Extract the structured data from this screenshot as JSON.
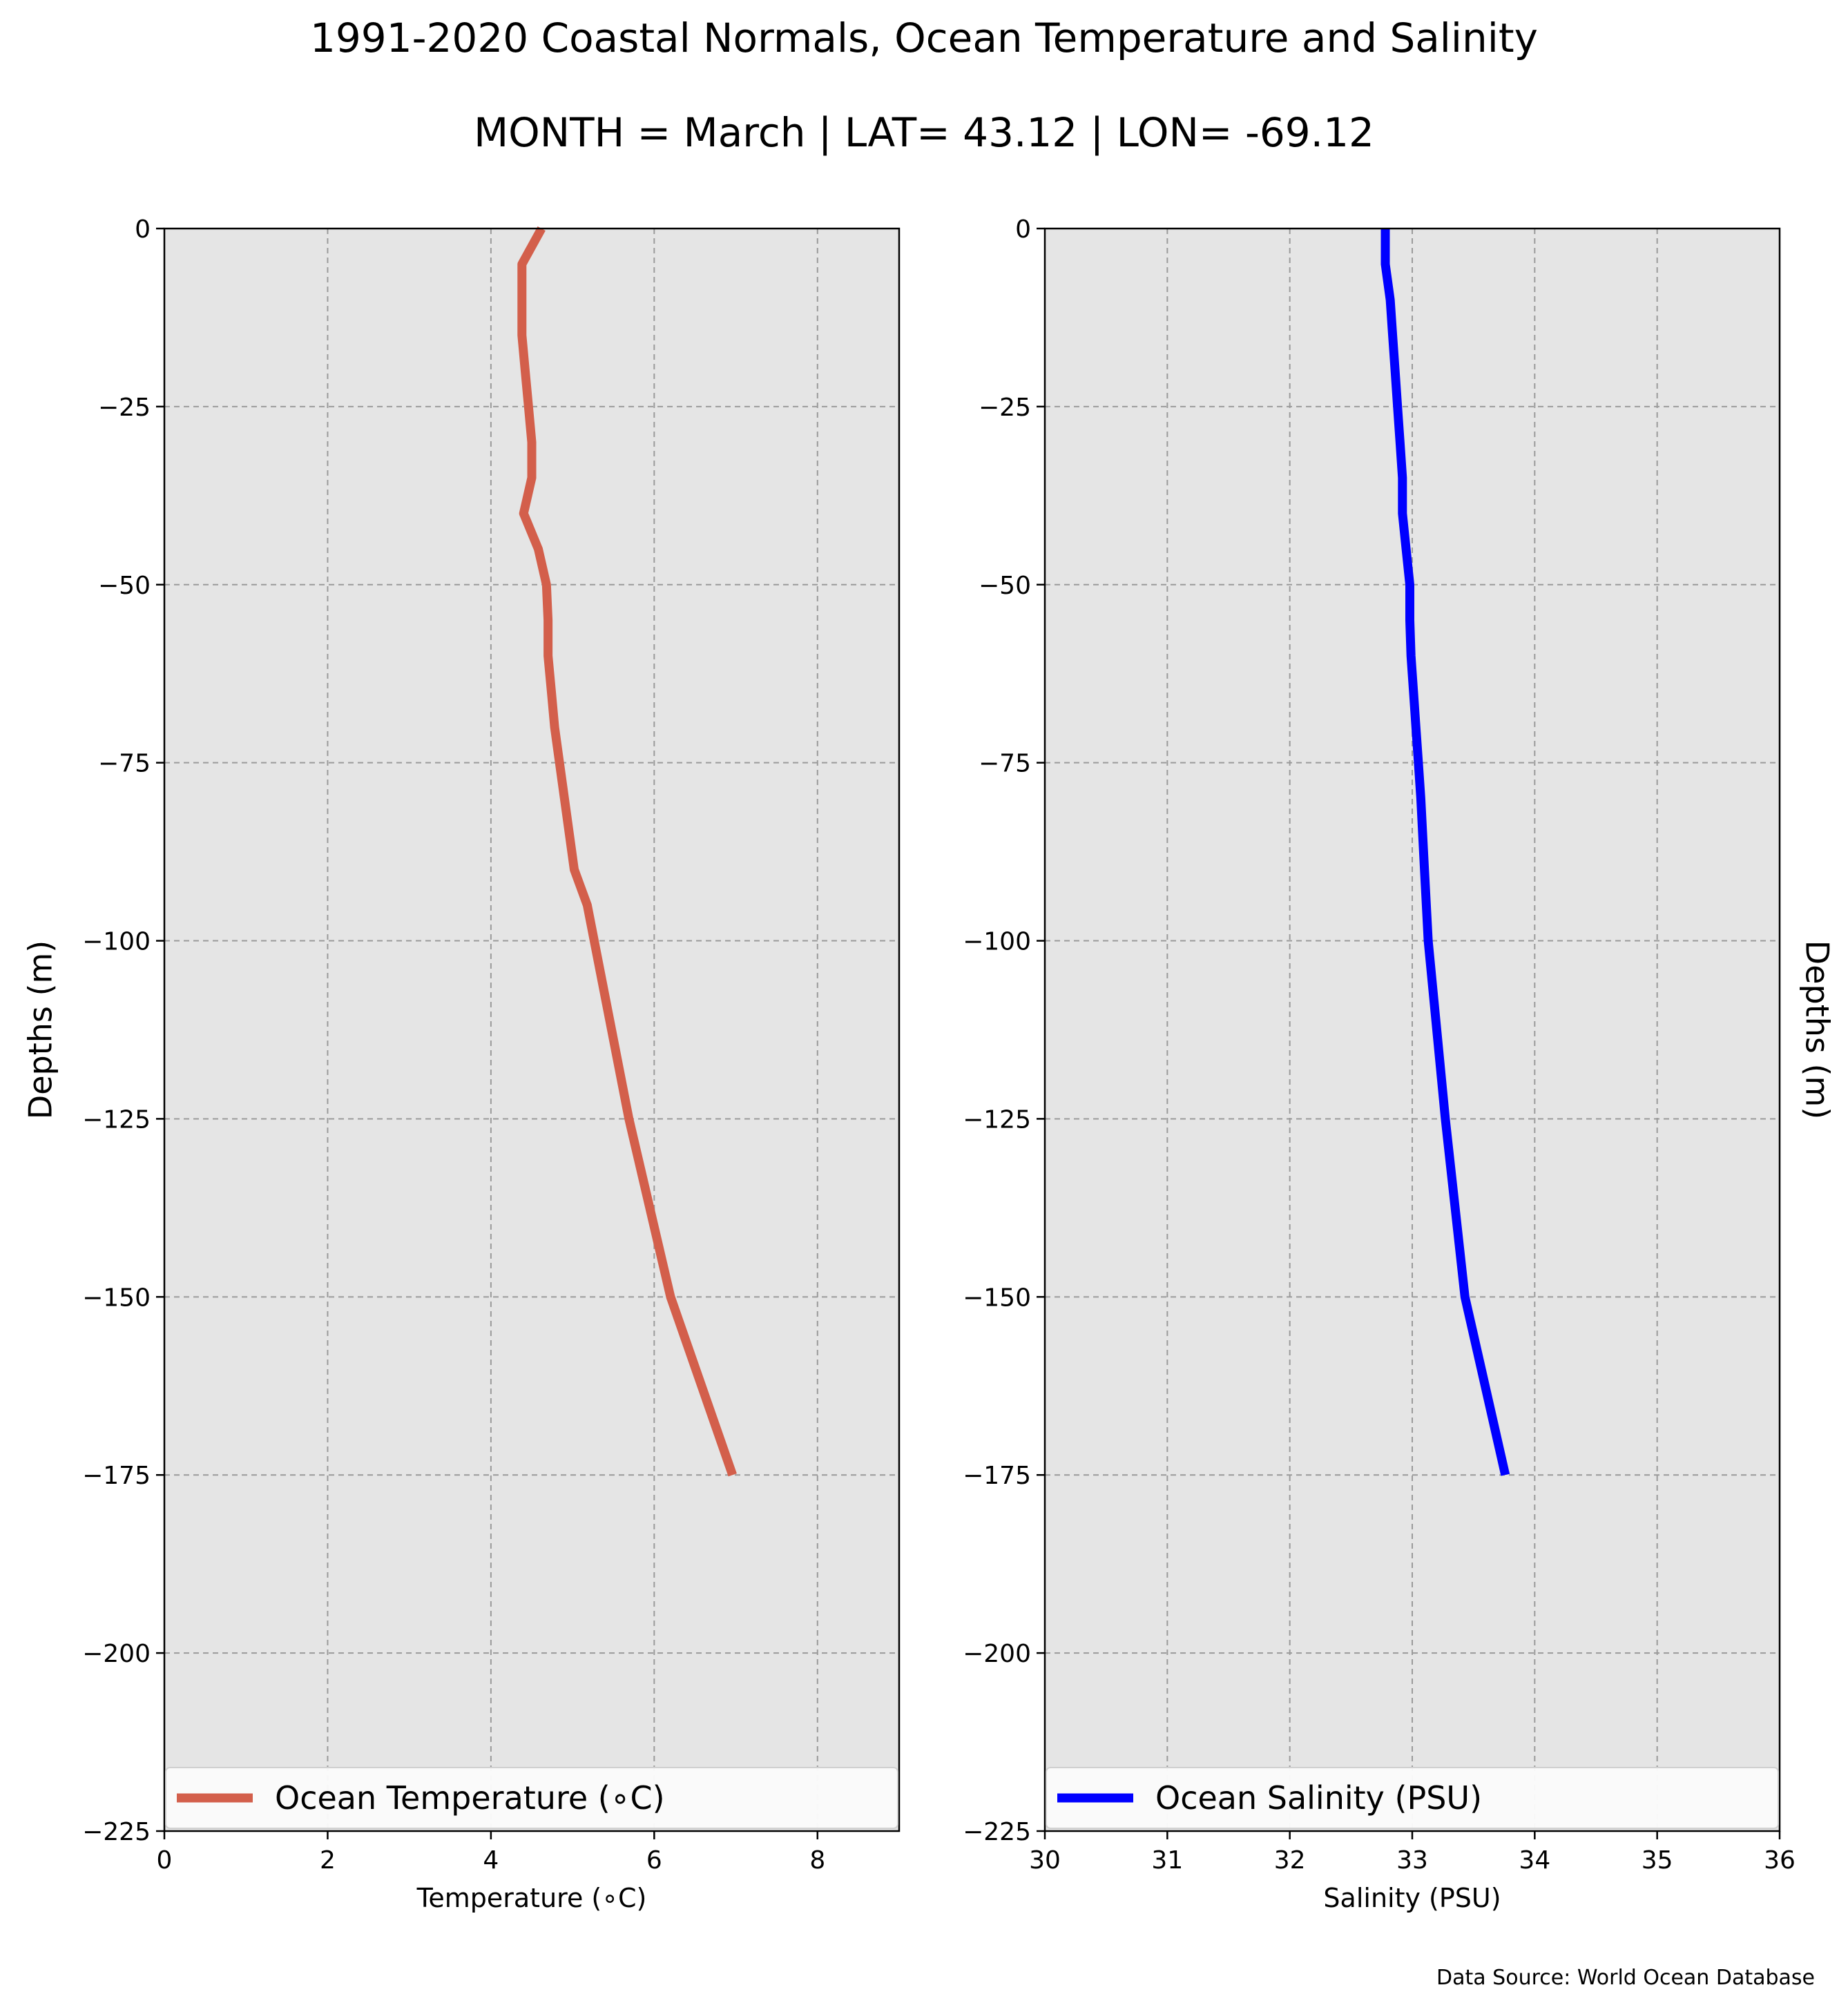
{
  "figure": {
    "title": "1991-2020 Coastal Normals, Ocean Temperature and Salinity",
    "subtitle": "MONTH = March | LAT= 43.12 | LON= -69.12",
    "source": "Data Source: World Ocean Database"
  },
  "chart_data": [
    {
      "type": "line",
      "xlabel": "Temperature (∘C)",
      "ylabel": "Depths (m)",
      "ylabel_side": "left",
      "xlim": [
        0,
        9
      ],
      "ylim": [
        -225,
        0
      ],
      "xticks": [
        0,
        2,
        4,
        6,
        8
      ],
      "xtick_labels": [
        "0",
        "2",
        "4",
        "6",
        "8"
      ],
      "yticks": [
        0,
        -25,
        -50,
        -75,
        -100,
        -125,
        -150,
        -175,
        -200,
        -225
      ],
      "ytick_labels": [
        "0",
        "−25",
        "−50",
        "−75",
        "−100",
        "−125",
        "−150",
        "−175",
        "−200",
        "−225"
      ],
      "grid": true,
      "legend_position": "bottom",
      "background": "#e5e5e5",
      "series": [
        {
          "name": "Ocean Temperature (∘C)",
          "color": "#d35f4b",
          "x": [
            4.62,
            4.38,
            4.38,
            4.38,
            4.42,
            4.46,
            4.5,
            4.5,
            4.48,
            4.4,
            4.58,
            4.68,
            4.7,
            4.7,
            4.74,
            4.78,
            4.84,
            4.9,
            4.96,
            5.02,
            5.18,
            5.69,
            6.2,
            6.96
          ],
          "y": [
            0,
            -5,
            -10,
            -15,
            -20,
            -25,
            -30,
            -35,
            -36,
            -40,
            -45,
            -50,
            -55,
            -60,
            -65,
            -70,
            -75,
            -80,
            -85,
            -90,
            -95,
            -125,
            -150,
            -175
          ]
        }
      ]
    },
    {
      "type": "line",
      "xlabel": "Salinity (PSU)",
      "ylabel": "Depths (m)",
      "ylabel_side": "right",
      "xlim": [
        30,
        36
      ],
      "ylim": [
        -225,
        0
      ],
      "xticks": [
        30,
        31,
        32,
        33,
        34,
        35,
        36
      ],
      "xtick_labels": [
        "30",
        "31",
        "32",
        "33",
        "34",
        "35",
        "36"
      ],
      "yticks": [
        0,
        -25,
        -50,
        -75,
        -100,
        -125,
        -150,
        -175,
        -200,
        -225
      ],
      "ytick_labels": [
        "0",
        "−25",
        "−50",
        "−75",
        "−100",
        "−125",
        "−150",
        "−175",
        "−200",
        "−225"
      ],
      "grid": true,
      "legend_position": "bottom",
      "background": "#e5e5e5",
      "series": [
        {
          "name": "Ocean Salinity (PSU)",
          "color": "#0000ff",
          "x": [
            32.78,
            32.78,
            32.82,
            32.84,
            32.86,
            32.88,
            32.9,
            32.92,
            32.92,
            32.95,
            32.98,
            32.98,
            32.99,
            33.01,
            33.03,
            33.05,
            33.07,
            33.1,
            33.13,
            33.27,
            33.43,
            33.76
          ],
          "y": [
            0,
            -5,
            -10,
            -15,
            -20,
            -25,
            -30,
            -35,
            -40,
            -45,
            -50,
            -55,
            -60,
            -65,
            -70,
            -75,
            -80,
            -90,
            -100,
            -125,
            -150,
            -175
          ]
        }
      ]
    }
  ]
}
